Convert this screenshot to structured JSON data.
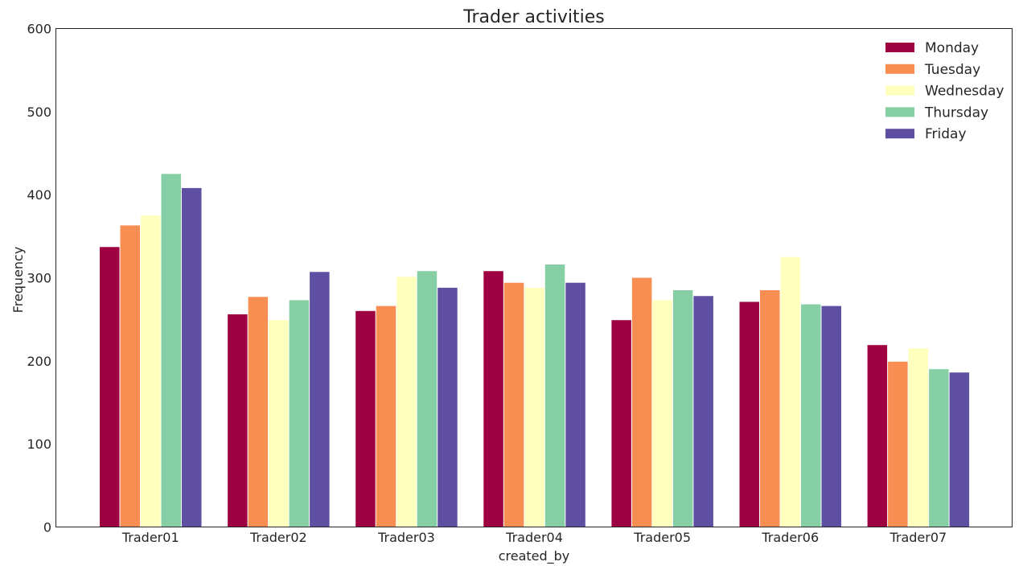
{
  "chart_data": {
    "type": "bar",
    "title": "Trader activities",
    "xlabel": "created_by",
    "ylabel": "Frequency",
    "ylim": [
      0,
      600
    ],
    "yticks": [
      0,
      100,
      200,
      300,
      400,
      500,
      600
    ],
    "grid": false,
    "legend_position": "top-right",
    "categories": [
      "Trader01",
      "Trader02",
      "Trader03",
      "Trader04",
      "Trader05",
      "Trader06",
      "Trader07"
    ],
    "series": [
      {
        "name": "Monday",
        "color": "#9e0142",
        "values": [
          337,
          256,
          260,
          308,
          249,
          271,
          219
        ]
      },
      {
        "name": "Tuesday",
        "color": "#f98e52",
        "values": [
          363,
          277,
          266,
          294,
          300,
          285,
          199
        ]
      },
      {
        "name": "Wednesday",
        "color": "#ffffbe",
        "values": [
          375,
          249,
          301,
          288,
          273,
          325,
          215
        ]
      },
      {
        "name": "Thursday",
        "color": "#86cfa5",
        "values": [
          425,
          273,
          308,
          316,
          285,
          268,
          190
        ]
      },
      {
        "name": "Friday",
        "color": "#5e4fa2",
        "values": [
          408,
          307,
          288,
          294,
          278,
          266,
          186
        ]
      }
    ]
  }
}
